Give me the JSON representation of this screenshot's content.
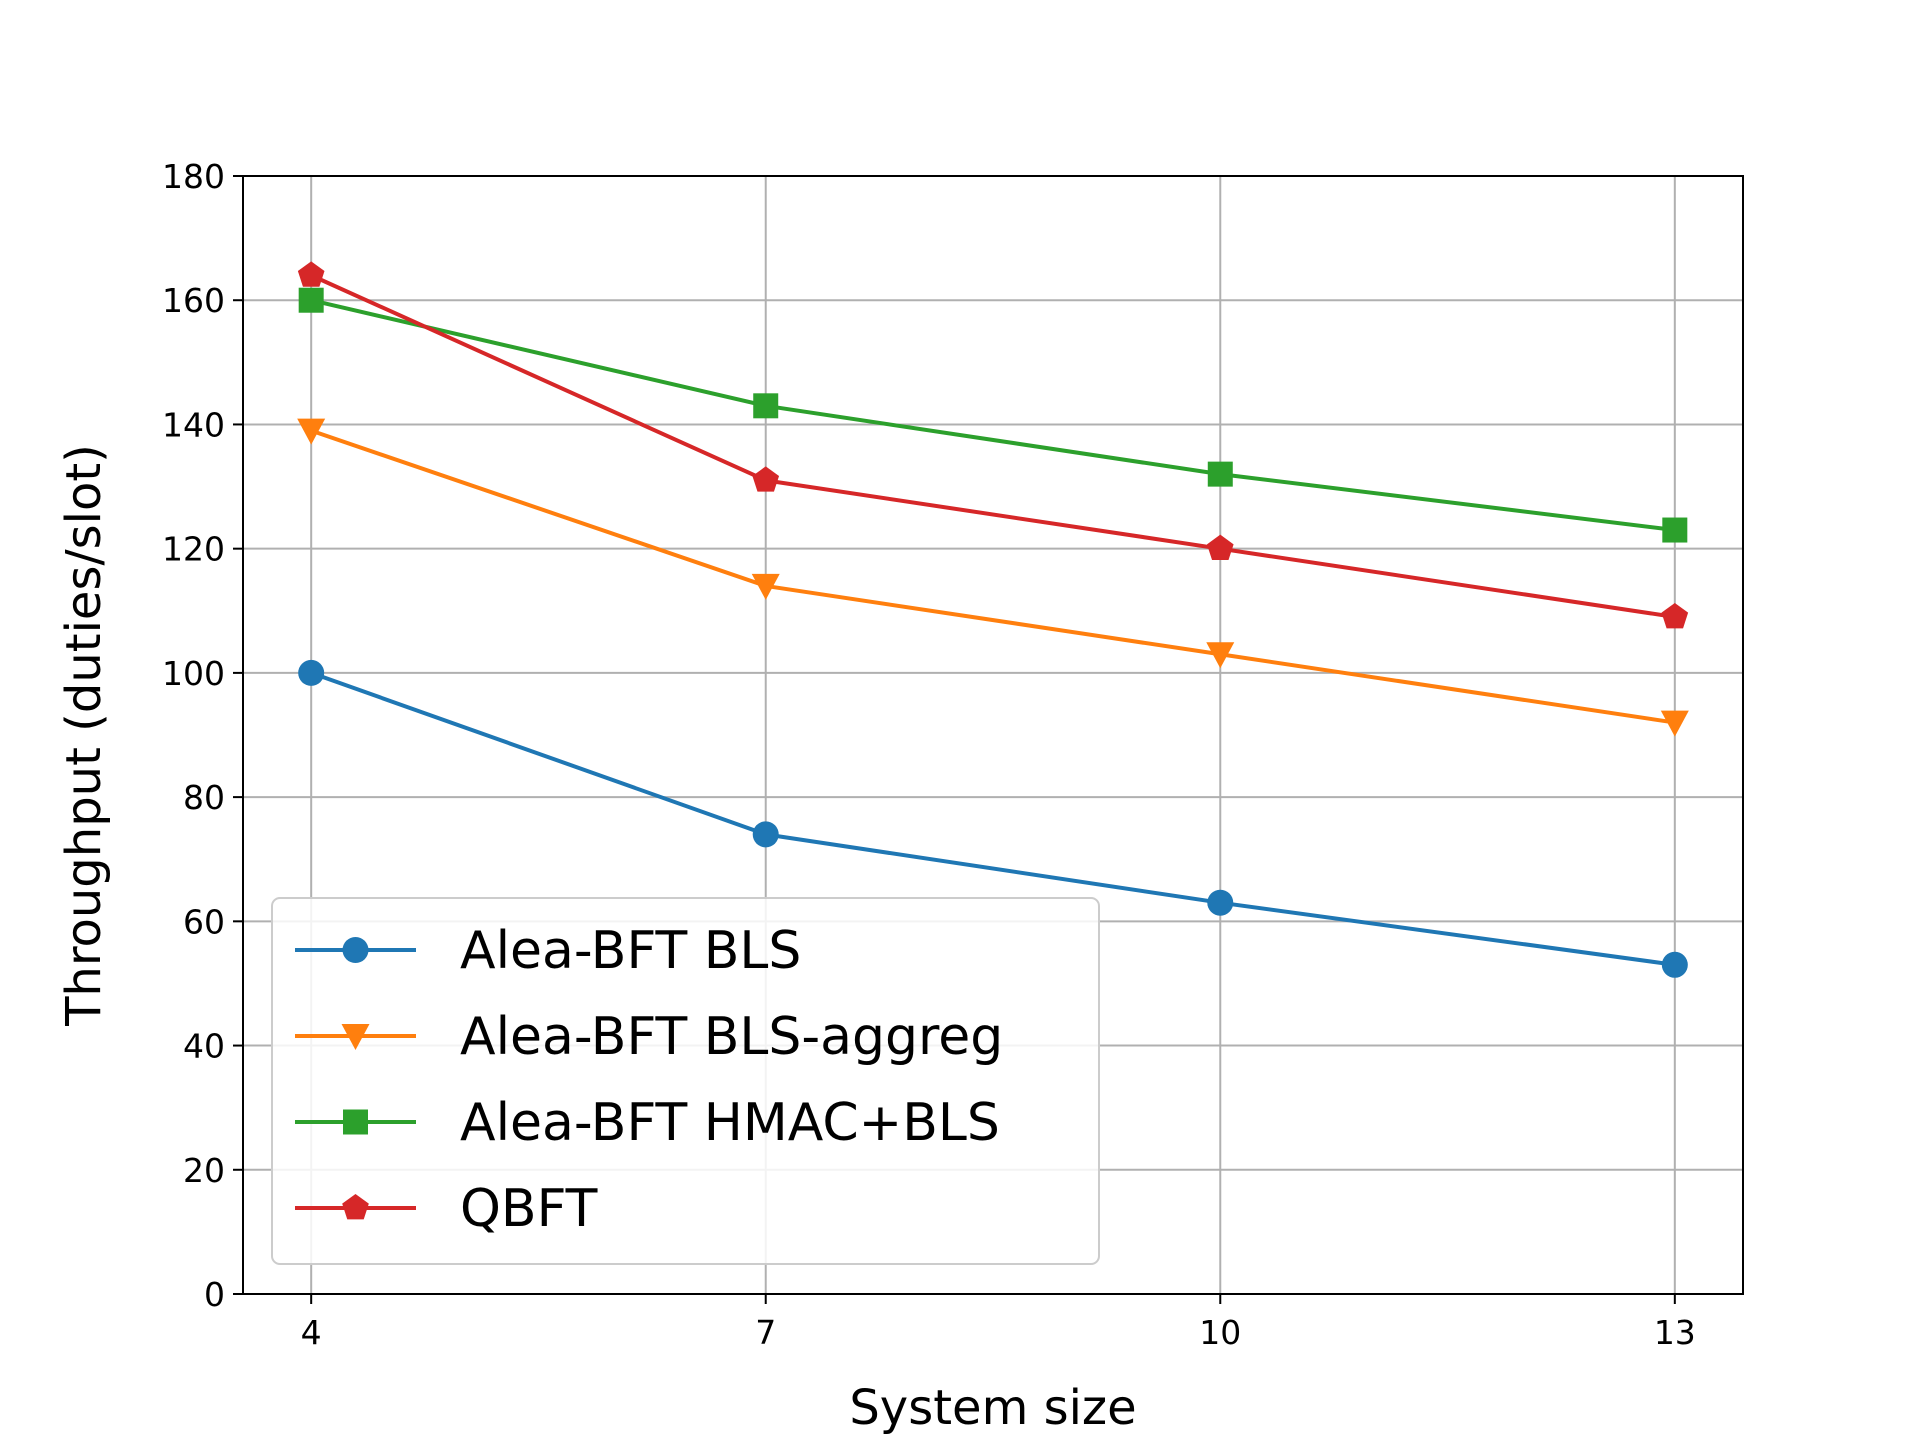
{
  "chart_data": {
    "type": "line",
    "title": "",
    "xlabel": "System size",
    "ylabel": "Throughput (duties/slot)",
    "x": [
      4,
      7,
      10,
      13
    ],
    "x_tick_labels": [
      "4",
      "7",
      "10",
      "13"
    ],
    "xlim": [
      3.55,
      13.45
    ],
    "ylim": [
      0,
      180
    ],
    "y_ticks": [
      0,
      20,
      40,
      60,
      80,
      100,
      120,
      140,
      160,
      180
    ],
    "y_tick_labels": [
      "0",
      "20",
      "40",
      "60",
      "80",
      "100",
      "120",
      "140",
      "160",
      "180"
    ],
    "grid": true,
    "legend_position": "lower-left",
    "series": [
      {
        "name": "Alea-BFT BLS",
        "color": "#1f77b4",
        "marker": "circle",
        "values": [
          100,
          74,
          63,
          53
        ]
      },
      {
        "name": "Alea-BFT BLS-aggreg",
        "color": "#ff7f0e",
        "marker": "triangle-down",
        "values": [
          139,
          114,
          103,
          92
        ]
      },
      {
        "name": "Alea-BFT HMAC+BLS",
        "color": "#2ca02c",
        "marker": "square",
        "values": [
          160,
          143,
          132,
          123
        ]
      },
      {
        "name": "QBFT",
        "color": "#d62728",
        "marker": "pentagon",
        "values": [
          164,
          131,
          120,
          109
        ]
      }
    ]
  }
}
